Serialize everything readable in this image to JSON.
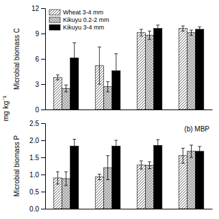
{
  "y_label": "mg kg⁻¹",
  "chart_data": [
    {
      "type": "bar",
      "y_label": "Microbial biomass C",
      "categories": [
        null,
        null,
        null,
        null
      ],
      "series": [
        {
          "name": "Wheat 3-4 mm",
          "color": "white",
          "values": [
            3.8,
            5.2,
            9.1,
            9.6
          ],
          "errors": [
            0.3,
            2.2,
            0.4,
            0.3
          ]
        },
        {
          "name": "Kikuyu 0.2-2 mm",
          "color": "lightgray",
          "values": [
            2.5,
            2.7,
            8.8,
            9.1
          ],
          "errors": [
            0.4,
            0.6,
            0.5,
            0.3
          ]
        },
        {
          "name": "Kikuyu 3-4 mm",
          "color": "black",
          "values": [
            6.1,
            4.6,
            9.6,
            9.5
          ],
          "errors": [
            1.8,
            2.0,
            0.4,
            0.3
          ]
        }
      ],
      "ylim": [
        0,
        12
      ],
      "yticks": [
        0,
        3,
        6,
        9,
        12
      ],
      "legend": "upper left",
      "grid": false
    },
    {
      "type": "bar",
      "y_label": "Microbial biomass P",
      "annotation": "(b) MBP",
      "categories": [
        null,
        null,
        null,
        null
      ],
      "series": [
        {
          "name": "Wheat 3-4 mm",
          "color": "white",
          "values": [
            0.9,
            0.93,
            1.28,
            1.55
          ],
          "errors": [
            0.18,
            0.08,
            0.12,
            0.22
          ]
        },
        {
          "name": "Kikuyu 0.2-2 mm",
          "color": "lightgray",
          "values": [
            0.88,
            1.2,
            1.27,
            1.68
          ],
          "errors": [
            0.2,
            0.35,
            0.1,
            0.18
          ]
        },
        {
          "name": "Kikuyu 3-4 mm",
          "color": "black",
          "values": [
            1.83,
            1.83,
            1.85,
            1.68
          ],
          "errors": [
            0.2,
            0.17,
            0.17,
            0.14
          ]
        }
      ],
      "ylim": [
        0.0,
        2.5
      ],
      "yticks": [
        {
          "value": 0,
          "label": "0.0"
        },
        0.5,
        {
          "value": 1,
          "label": "1.0"
        },
        1.5,
        {
          "value": 2,
          "label": "2.0"
        },
        2.5
      ],
      "grid": false
    }
  ]
}
